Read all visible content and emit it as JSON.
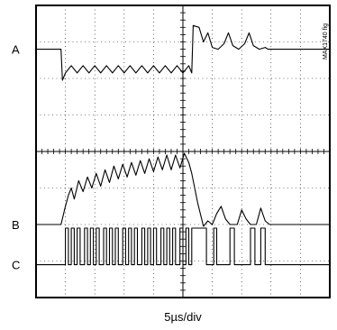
{
  "chart_data": {
    "type": "line",
    "title": "",
    "xlabel": "5µs/div",
    "ylabel": "",
    "part_number": "MAX1740 fig",
    "time_per_div_us": 5,
    "divisions_x": 10,
    "divisions_y": 8,
    "grid": true,
    "series": [
      {
        "name": "A",
        "description": "High level, drops at ~1 div, triangular ripple until ~5.3 div, spikes up then three decaying bumps, settles back to high level",
        "points_div": [
          [
            0,
            1.2
          ],
          [
            0.85,
            1.2
          ],
          [
            0.9,
            2.05
          ],
          [
            1.0,
            1.85
          ],
          [
            1.2,
            1.65
          ],
          [
            1.4,
            1.85
          ],
          [
            1.6,
            1.65
          ],
          [
            1.8,
            1.85
          ],
          [
            2.0,
            1.65
          ],
          [
            2.2,
            1.85
          ],
          [
            2.4,
            1.65
          ],
          [
            2.6,
            1.85
          ],
          [
            2.8,
            1.65
          ],
          [
            3.0,
            1.85
          ],
          [
            3.2,
            1.65
          ],
          [
            3.4,
            1.85
          ],
          [
            3.6,
            1.65
          ],
          [
            3.8,
            1.85
          ],
          [
            4.0,
            1.65
          ],
          [
            4.2,
            1.85
          ],
          [
            4.4,
            1.65
          ],
          [
            4.6,
            1.85
          ],
          [
            4.8,
            1.65
          ],
          [
            5.0,
            1.85
          ],
          [
            5.2,
            1.65
          ],
          [
            5.3,
            1.85
          ],
          [
            5.35,
            0.55
          ],
          [
            5.55,
            0.6
          ],
          [
            5.7,
            1.0
          ],
          [
            5.85,
            0.75
          ],
          [
            6.0,
            1.15
          ],
          [
            6.2,
            1.2
          ],
          [
            6.4,
            1.05
          ],
          [
            6.55,
            0.75
          ],
          [
            6.7,
            1.1
          ],
          [
            6.9,
            1.2
          ],
          [
            7.1,
            1.05
          ],
          [
            7.25,
            0.75
          ],
          [
            7.4,
            1.1
          ],
          [
            7.6,
            1.2
          ],
          [
            7.8,
            1.15
          ],
          [
            7.9,
            1.2
          ],
          [
            10,
            1.2
          ]
        ]
      },
      {
        "name": "B",
        "description": "Low level, rises at ~1 div, triangular ripple ramping up to ~5.3 div, then drops below baseline with three bumps, settles at low level",
        "points_div": [
          [
            0,
            6.0
          ],
          [
            0.85,
            6.0
          ],
          [
            1.0,
            5.5
          ],
          [
            1.1,
            5.2
          ],
          [
            1.2,
            5.0
          ],
          [
            1.3,
            5.3
          ],
          [
            1.45,
            4.8
          ],
          [
            1.6,
            5.1
          ],
          [
            1.75,
            4.7
          ],
          [
            1.9,
            5.0
          ],
          [
            2.05,
            4.6
          ],
          [
            2.2,
            4.95
          ],
          [
            2.35,
            4.5
          ],
          [
            2.5,
            4.85
          ],
          [
            2.65,
            4.4
          ],
          [
            2.8,
            4.75
          ],
          [
            2.95,
            4.35
          ],
          [
            3.1,
            4.7
          ],
          [
            3.25,
            4.3
          ],
          [
            3.4,
            4.65
          ],
          [
            3.55,
            4.25
          ],
          [
            3.7,
            4.6
          ],
          [
            3.85,
            4.2
          ],
          [
            4.0,
            4.55
          ],
          [
            4.15,
            4.15
          ],
          [
            4.3,
            4.5
          ],
          [
            4.45,
            4.1
          ],
          [
            4.6,
            4.5
          ],
          [
            4.75,
            4.1
          ],
          [
            4.9,
            4.45
          ],
          [
            5.05,
            4.05
          ],
          [
            5.2,
            4.3
          ],
          [
            5.3,
            4.6
          ],
          [
            5.5,
            5.4
          ],
          [
            5.7,
            6.05
          ],
          [
            5.85,
            5.9
          ],
          [
            6.0,
            6.0
          ],
          [
            6.15,
            5.7
          ],
          [
            6.3,
            5.5
          ],
          [
            6.45,
            5.85
          ],
          [
            6.6,
            6.0
          ],
          [
            6.85,
            6.0
          ],
          [
            7.0,
            5.6
          ],
          [
            7.15,
            5.85
          ],
          [
            7.3,
            6.0
          ],
          [
            7.5,
            6.0
          ],
          [
            7.65,
            5.55
          ],
          [
            7.8,
            5.9
          ],
          [
            7.95,
            6.0
          ],
          [
            10,
            6.0
          ]
        ]
      },
      {
        "name": "C",
        "description": "Switching pulse train; dense pulses from ~1 to ~5 div, then widely spaced pulses until ~7.8 div",
        "points_div": [
          [
            0,
            7.1
          ],
          [
            1.0,
            7.1
          ],
          [
            1.0,
            6.1
          ],
          [
            1.1,
            6.1
          ],
          [
            1.1,
            7.1
          ],
          [
            1.2,
            7.1
          ],
          [
            1.2,
            6.1
          ],
          [
            1.3,
            6.1
          ],
          [
            1.3,
            7.1
          ],
          [
            1.4,
            7.1
          ],
          [
            1.4,
            6.1
          ],
          [
            1.5,
            6.1
          ],
          [
            1.5,
            7.1
          ],
          [
            1.65,
            7.1
          ],
          [
            1.65,
            6.1
          ],
          [
            1.75,
            6.1
          ],
          [
            1.75,
            7.1
          ],
          [
            1.85,
            7.1
          ],
          [
            1.85,
            6.1
          ],
          [
            1.95,
            6.1
          ],
          [
            1.95,
            7.1
          ],
          [
            2.05,
            7.1
          ],
          [
            2.05,
            6.1
          ],
          [
            2.15,
            6.1
          ],
          [
            2.15,
            7.1
          ],
          [
            2.3,
            7.1
          ],
          [
            2.3,
            6.1
          ],
          [
            2.4,
            6.1
          ],
          [
            2.4,
            7.1
          ],
          [
            2.5,
            7.1
          ],
          [
            2.5,
            6.1
          ],
          [
            2.6,
            6.1
          ],
          [
            2.6,
            7.1
          ],
          [
            2.7,
            7.1
          ],
          [
            2.7,
            6.1
          ],
          [
            2.8,
            6.1
          ],
          [
            2.8,
            7.1
          ],
          [
            2.95,
            7.1
          ],
          [
            2.95,
            6.1
          ],
          [
            3.05,
            6.1
          ],
          [
            3.05,
            7.1
          ],
          [
            3.15,
            7.1
          ],
          [
            3.15,
            6.1
          ],
          [
            3.25,
            6.1
          ],
          [
            3.25,
            7.1
          ],
          [
            3.35,
            7.1
          ],
          [
            3.35,
            6.1
          ],
          [
            3.45,
            6.1
          ],
          [
            3.45,
            7.1
          ],
          [
            3.6,
            7.1
          ],
          [
            3.6,
            6.1
          ],
          [
            3.7,
            6.1
          ],
          [
            3.7,
            7.1
          ],
          [
            3.8,
            7.1
          ],
          [
            3.8,
            6.1
          ],
          [
            3.9,
            6.1
          ],
          [
            3.9,
            7.1
          ],
          [
            4.0,
            7.1
          ],
          [
            4.0,
            6.1
          ],
          [
            4.1,
            6.1
          ],
          [
            4.1,
            7.1
          ],
          [
            4.25,
            7.1
          ],
          [
            4.25,
            6.1
          ],
          [
            4.35,
            6.1
          ],
          [
            4.35,
            7.1
          ],
          [
            4.45,
            7.1
          ],
          [
            4.45,
            6.1
          ],
          [
            4.55,
            6.1
          ],
          [
            4.55,
            7.1
          ],
          [
            4.65,
            7.1
          ],
          [
            4.65,
            6.1
          ],
          [
            4.75,
            6.1
          ],
          [
            4.75,
            7.1
          ],
          [
            4.9,
            7.1
          ],
          [
            4.9,
            6.1
          ],
          [
            5.0,
            6.1
          ],
          [
            5.0,
            7.1
          ],
          [
            5.1,
            7.1
          ],
          [
            5.1,
            6.1
          ],
          [
            5.2,
            6.1
          ],
          [
            5.2,
            7.1
          ],
          [
            5.3,
            7.1
          ],
          [
            5.3,
            6.1
          ],
          [
            5.8,
            6.1
          ],
          [
            5.8,
            7.1
          ],
          [
            6.05,
            7.1
          ],
          [
            6.05,
            6.1
          ],
          [
            6.15,
            6.1
          ],
          [
            6.15,
            7.1
          ],
          [
            6.6,
            7.1
          ],
          [
            6.6,
            6.1
          ],
          [
            6.75,
            6.1
          ],
          [
            6.75,
            7.1
          ],
          [
            7.3,
            7.1
          ],
          [
            7.3,
            6.1
          ],
          [
            7.45,
            6.1
          ],
          [
            7.45,
            7.1
          ],
          [
            7.65,
            7.1
          ],
          [
            7.65,
            6.1
          ],
          [
            7.8,
            6.1
          ],
          [
            7.8,
            7.1
          ],
          [
            10,
            7.1
          ]
        ]
      }
    ]
  }
}
